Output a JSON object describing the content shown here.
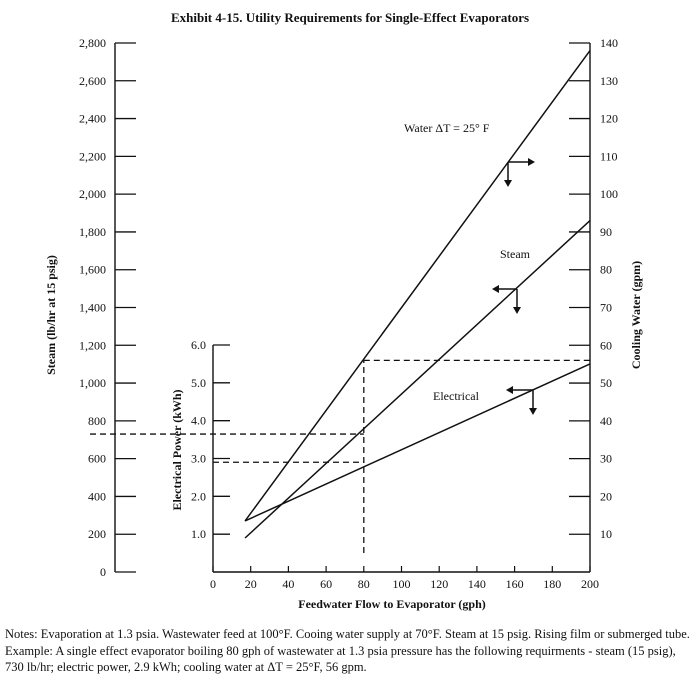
{
  "chart_data": {
    "type": "line",
    "title": "Exhibit 4-15. Utility Requirements for Single-Effect Evaporators",
    "x_axis": {
      "label": "Feedwater Flow to Evaporator (gph)",
      "range": [
        0,
        200
      ],
      "ticks": [
        0,
        20,
        40,
        60,
        80,
        100,
        120,
        140,
        160,
        180,
        200
      ]
    },
    "steam_axis": {
      "label": "Steam (lb/hr at 15 psig)",
      "range": [
        0,
        2800
      ],
      "ticks": [
        "0",
        "200",
        "400",
        "600",
        "800",
        "1,000",
        "1,200",
        "1,400",
        "1,600",
        "1,800",
        "2,000",
        "2,200",
        "2,400",
        "2,600",
        "2,800"
      ]
    },
    "cooling_axis": {
      "label": "Cooling Water (gpm)",
      "range": [
        0,
        140
      ],
      "ticks": [
        10,
        20,
        30,
        40,
        50,
        60,
        70,
        80,
        90,
        100,
        110,
        120,
        130,
        140
      ]
    },
    "electrical_axis": {
      "label": "Electrical Power (kWh)",
      "range": [
        0,
        6.0
      ],
      "ticks": [
        "1.0",
        "2.0",
        "3.0",
        "4.0",
        "5.0",
        "6.0"
      ]
    },
    "series": [
      {
        "name": "Water ΔT = 25° F",
        "axis": "cooling",
        "x": [
          17,
          200
        ],
        "y": [
          13.5,
          138
        ]
      },
      {
        "name": "Steam",
        "axis": "steam",
        "x": [
          17,
          200
        ],
        "y": [
          180,
          1860
        ]
      },
      {
        "name": "Electrical",
        "axis": "electrical",
        "x": [
          17,
          200
        ],
        "y": [
          1.35,
          5.5
        ]
      }
    ],
    "example": {
      "x": 80,
      "steam": 730,
      "electrical": 2.9,
      "cooling": 56
    },
    "grid": false
  },
  "notes": {
    "line1": "Notes: Evaporation at 1.3 psia. Wastewater feed at 100°F.  Cooing water supply at 70°F. Steam at 15 psig. Rising film or submerged tube.",
    "line2": "Example: A single effect evaporator boiling 80 gph of wastewater at 1.3 psia pressure has the following requirments - steam (15 psig), 730 lb/hr; electric power, 2.9 kWh; cooling water at ΔT = 25°F, 56 gpm."
  }
}
